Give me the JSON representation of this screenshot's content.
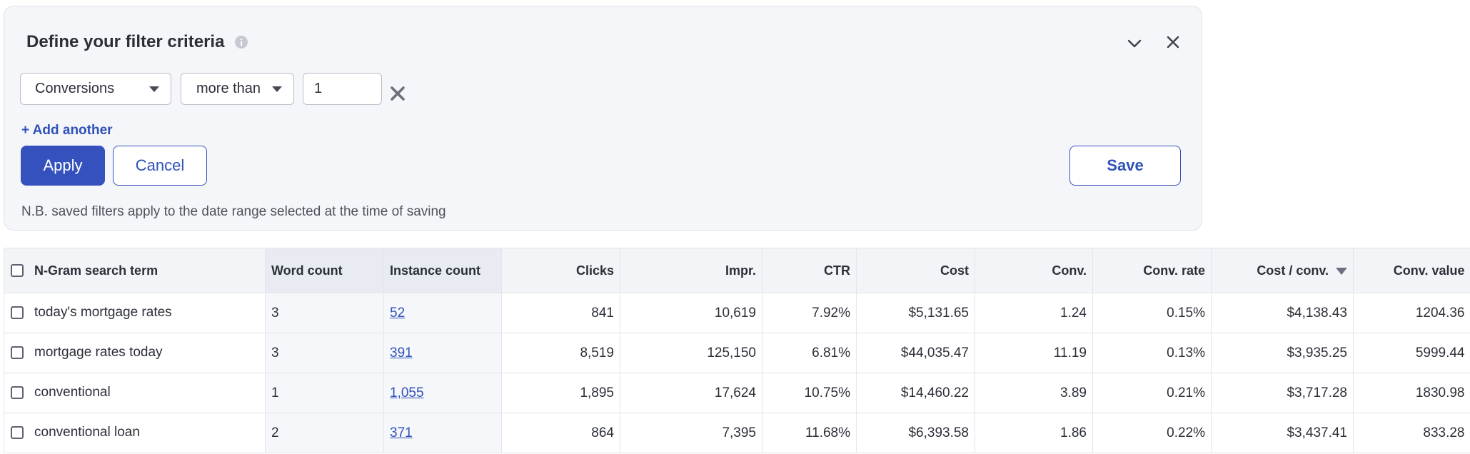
{
  "filter": {
    "title": "Define your filter criteria",
    "metric_value": "Conversions",
    "operator_value": "more than",
    "threshold_value": "1",
    "add_another_label": "+ Add another",
    "apply_label": "Apply",
    "cancel_label": "Cancel",
    "save_label": "Save",
    "note": "N.B. saved filters apply to the date range selected at the time of saving"
  },
  "table": {
    "headers": {
      "term": "N-Gram search term",
      "word_count": "Word count",
      "instance_count": "Instance count",
      "clicks": "Clicks",
      "impr": "Impr.",
      "ctr": "CTR",
      "cost": "Cost",
      "conv": "Conv.",
      "conv_rate": "Conv. rate",
      "cost_conv": "Cost / conv.",
      "conv_value": "Conv. value"
    },
    "sorted_column": "cost_conv",
    "sort_direction": "descending",
    "rows": [
      {
        "term": "today's mortgage rates",
        "word_count": "3",
        "instance_count": "52",
        "clicks": "841",
        "impr": "10,619",
        "ctr": "7.92%",
        "cost": "$5,131.65",
        "conv": "1.24",
        "conv_rate": "0.15%",
        "cost_conv": "$4,138.43",
        "conv_value": "1204.36"
      },
      {
        "term": "mortgage rates today",
        "word_count": "3",
        "instance_count": "391",
        "clicks": "8,519",
        "impr": "125,150",
        "ctr": "6.81%",
        "cost": "$44,035.47",
        "conv": "11.19",
        "conv_rate": "0.13%",
        "cost_conv": "$3,935.25",
        "conv_value": "5999.44"
      },
      {
        "term": "conventional",
        "word_count": "1",
        "instance_count": "1,055",
        "clicks": "1,895",
        "impr": "17,624",
        "ctr": "10.75%",
        "cost": "$14,460.22",
        "conv": "3.89",
        "conv_rate": "0.21%",
        "cost_conv": "$3,717.28",
        "conv_value": "1830.98"
      },
      {
        "term": "conventional loan",
        "word_count": "2",
        "instance_count": "371",
        "clicks": "864",
        "impr": "7,395",
        "ctr": "11.68%",
        "cost": "$6,393.58",
        "conv": "1.86",
        "conv_rate": "0.22%",
        "cost_conv": "$3,437.41",
        "conv_value": "833.28"
      }
    ]
  },
  "colors": {
    "primary": "#3451bd",
    "link": "#2f52b8",
    "panel_bg": "#f5f6f9"
  }
}
